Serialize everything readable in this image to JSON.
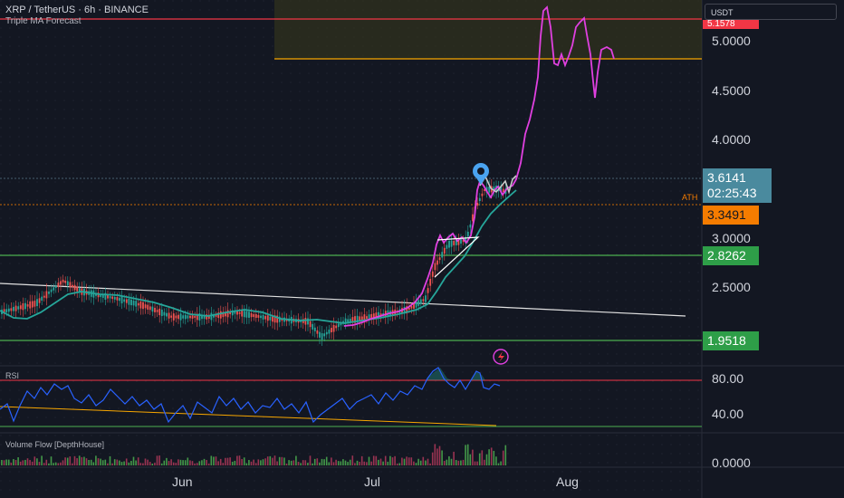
{
  "header": {
    "symbol": "XRP / TetherUS · 6h · BINANCE",
    "indicator": "Triple MA Forecast"
  },
  "price_axis": {
    "currency": "USDT",
    "ticks": [
      "5.0000",
      "4.5000",
      "4.0000",
      "3.0000",
      "2.5000"
    ],
    "top_badge": "5.1578",
    "current_price": "3.6141",
    "countdown": "02:25:43",
    "ath_label": "ATH",
    "ath_price": "3.3491",
    "support_1": "2.8262",
    "support_2": "1.9518"
  },
  "rsi_pane": {
    "title": "RSI",
    "ticks": [
      "80.00",
      "40.00"
    ]
  },
  "volume_pane": {
    "title": "Volume Flow [DepthHouse]",
    "tick": "0.0000"
  },
  "time_axis": {
    "labels": [
      "Jun",
      "Jul",
      "Aug"
    ]
  },
  "colors": {
    "background": "#131722",
    "forecast_line": "#e040e0",
    "ma_line": "#26a69a",
    "rsi_line": "#2962ff",
    "resistance": "#f23645",
    "target": "#f7a600",
    "support": "#4caf50",
    "price_badge": "#4a8a9e",
    "ath_badge": "#f57c00",
    "support_badge": "#2e9e48",
    "marker": "#4aa3f0"
  },
  "icons": {
    "forecast_marker": "location-pin-icon",
    "alert": "lightning-icon"
  }
}
